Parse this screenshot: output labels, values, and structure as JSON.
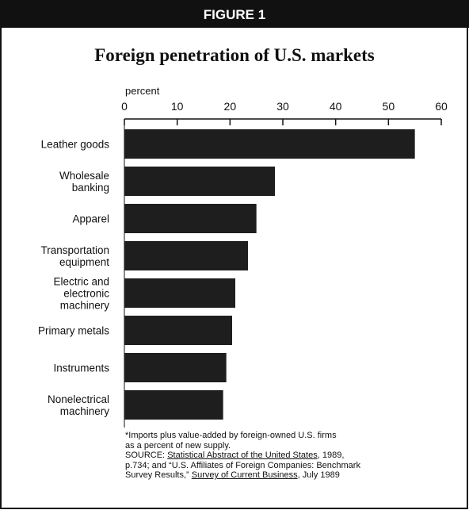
{
  "chart_data": {
    "type": "hbar",
    "header": "FIGURE 1",
    "title": "Foreign penetration of U.S. markets",
    "axis_label": "percent",
    "categories": [
      "Leather goods",
      "Wholesale\nbanking",
      "Apparel",
      "Transportation\nequipment",
      "Electric and\nelectronic\nmachinery",
      "Primary metals",
      "Instruments",
      "Nonelectrical\nmachinery"
    ],
    "values": [
      55,
      28.5,
      25,
      23.4,
      21,
      20.4,
      19.3,
      18.7
    ],
    "color": "#1e1e1e",
    "xlim": [
      0,
      60
    ],
    "xticks": [
      0,
      10,
      20,
      30,
      40,
      50,
      60
    ],
    "footnote": "*Imports plus value-added by foreign-owned U.S. firms\nas a percent of new supply.",
    "source": [
      {
        "text": "SOURCE: ",
        "underline": false
      },
      {
        "text": "Statistical Abstract of the United States",
        "underline": true
      },
      {
        "text": ", 1989,\np.734; and “U.S. Affiliates of Foreign Companies: Benchmark\nSurvey Results,” ",
        "underline": false
      },
      {
        "text": "Survey of Current Business",
        "underline": true
      },
      {
        "text": ", July 1989",
        "underline": false
      }
    ]
  }
}
